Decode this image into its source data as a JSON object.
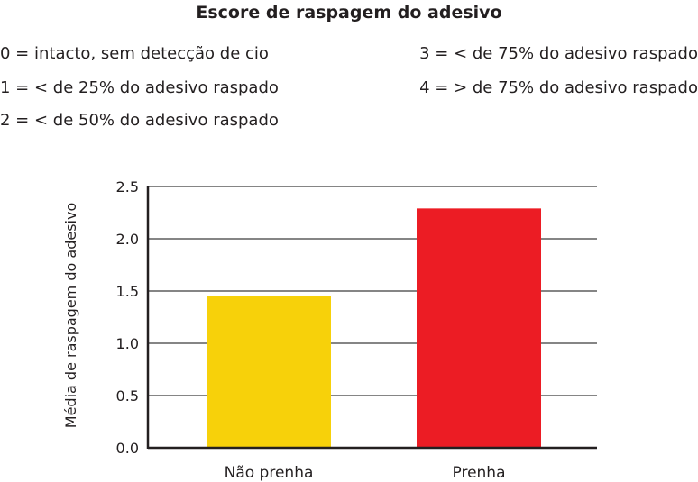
{
  "chart_data": {
    "type": "bar",
    "title": "Escore de raspagem do adesivo",
    "legend_entries": [
      "0 = intacto, sem detecção de cio",
      "1 = < de 25% do adesivo raspado",
      "2 = < de 50% do adesivo raspado",
      "3 = < de 75% do adesivo raspado",
      "4 = > de 75% do adesivo raspado"
    ],
    "categories": [
      "Não prenha",
      "Prenha"
    ],
    "values": [
      1.45,
      2.29
    ],
    "colors": [
      "#f7d10a",
      "#ec1c24"
    ],
    "ylabel": "Média de raspagem do adesivo",
    "xlabel": "",
    "ylim": [
      0,
      2.5
    ],
    "yticks": [
      0.0,
      0.5,
      1.0,
      1.5,
      2.0,
      2.5
    ],
    "ytick_labels": [
      "0.0",
      "0.5",
      "1.0",
      "1.5",
      "2.0",
      "2.5"
    ],
    "grid": true,
    "legend_placement": "top"
  }
}
